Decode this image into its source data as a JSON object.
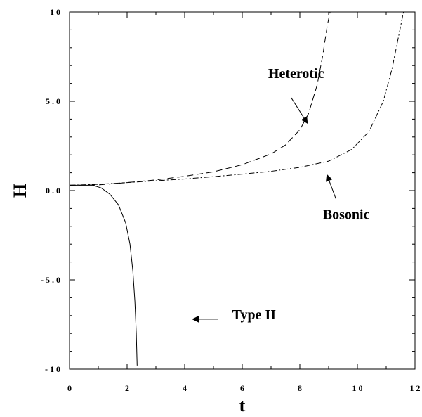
{
  "chart_data": {
    "type": "line",
    "title": "",
    "xlabel": "t",
    "ylabel": "H",
    "xlim": [
      0,
      12
    ],
    "ylim": [
      -10,
      10
    ],
    "grid": false,
    "x_ticks": [
      {
        "value": 0,
        "label": "0"
      },
      {
        "value": 2,
        "label": "2"
      },
      {
        "value": 4,
        "label": "4"
      },
      {
        "value": 6,
        "label": "6"
      },
      {
        "value": 8,
        "label": "8"
      },
      {
        "value": 10,
        "label": "1 0"
      },
      {
        "value": 12,
        "label": "1 2"
      }
    ],
    "y_ticks": [
      {
        "value": 10,
        "label": "1 0"
      },
      {
        "value": 5,
        "label": "5 . 0"
      },
      {
        "value": 0,
        "label": "0 . 0"
      },
      {
        "value": -5,
        "label": "- 5 . 0"
      },
      {
        "value": -10,
        "label": "- 1 0"
      }
    ],
    "series": [
      {
        "name": "Heterotic",
        "style": "dashed",
        "color": "#000000",
        "points": [
          [
            0,
            0.3
          ],
          [
            1,
            0.32
          ],
          [
            2,
            0.45
          ],
          [
            3,
            0.6
          ],
          [
            4,
            0.8
          ],
          [
            5,
            1.05
          ],
          [
            6,
            1.45
          ],
          [
            7,
            2.05
          ],
          [
            7.5,
            2.55
          ],
          [
            8,
            3.4
          ],
          [
            8.3,
            4.3
          ],
          [
            8.6,
            5.9
          ],
          [
            8.8,
            7.6
          ],
          [
            8.95,
            9.2
          ],
          [
            9.05,
            10
          ]
        ]
      },
      {
        "name": "Bosonic",
        "style": "dashdot",
        "color": "#000000",
        "points": [
          [
            0,
            0.3
          ],
          [
            1,
            0.35
          ],
          [
            2,
            0.45
          ],
          [
            3,
            0.55
          ],
          [
            4,
            0.65
          ],
          [
            5,
            0.78
          ],
          [
            6,
            0.92
          ],
          [
            7,
            1.08
          ],
          [
            8,
            1.3
          ],
          [
            9,
            1.65
          ],
          [
            9.8,
            2.3
          ],
          [
            10.4,
            3.3
          ],
          [
            10.9,
            5.0
          ],
          [
            11.2,
            6.8
          ],
          [
            11.45,
            8.8
          ],
          [
            11.6,
            10
          ]
        ]
      },
      {
        "name": "Type II",
        "style": "solid",
        "color": "#000000",
        "points": [
          [
            0,
            0.3
          ],
          [
            0.8,
            0.3
          ],
          [
            1.1,
            0.15
          ],
          [
            1.4,
            -0.2
          ],
          [
            1.7,
            -0.8
          ],
          [
            1.95,
            -1.8
          ],
          [
            2.1,
            -3.0
          ],
          [
            2.2,
            -4.5
          ],
          [
            2.27,
            -6.2
          ],
          [
            2.32,
            -8.0
          ],
          [
            2.35,
            -9.8
          ]
        ]
      }
    ],
    "annotations": [
      {
        "text": "Heterotic",
        "x": 6.9,
        "y": 6.3,
        "arrow_from": [
          7.7,
          5.2
        ],
        "arrow_to": [
          8.25,
          3.8
        ]
      },
      {
        "text": "Bosonic",
        "x": 8.8,
        "y": -1.6,
        "arrow_from": [
          9.25,
          -0.45
        ],
        "arrow_to": [
          8.95,
          0.85
        ]
      },
      {
        "text": "Type II",
        "x": 5.65,
        "y": -7.2,
        "arrow_from": [
          5.15,
          -7.2
        ],
        "arrow_to": [
          4.3,
          -7.2
        ]
      }
    ]
  }
}
